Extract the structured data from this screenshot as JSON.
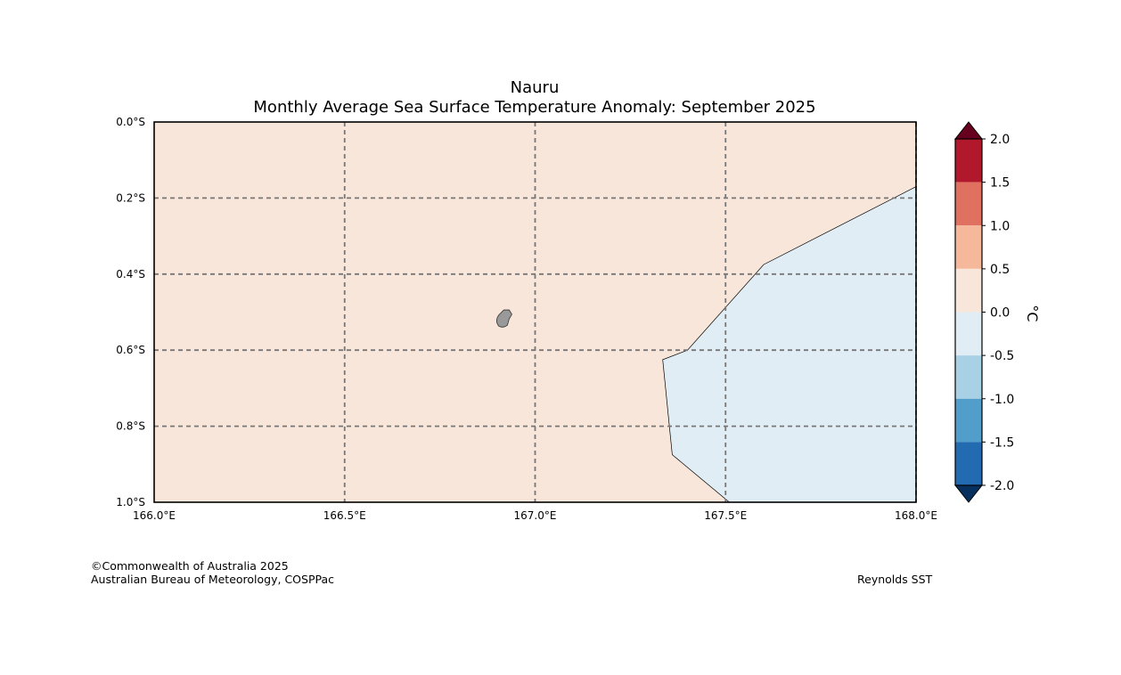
{
  "title": "Nauru",
  "subtitle": "Monthly Average Sea Surface Temperature Anomaly: September 2025",
  "map": {
    "lon_range": [
      166.0,
      168.0
    ],
    "lat_range": [
      0.0,
      1.0
    ],
    "lon_ticks": [
      "166.0°E",
      "166.5°E",
      "167.0°E",
      "167.5°E",
      "168.0°E"
    ],
    "lat_ticks": [
      "0.0°S",
      "0.2°S",
      "0.4°S",
      "0.6°S",
      "0.8°S",
      "1.0°S"
    ],
    "gridlines": true,
    "background_anomaly_color": "#f9e6da",
    "cool_region_color": "#e1edf4",
    "cool_region_outline_lonlat": [
      [
        168.0,
        0.17
      ],
      [
        167.6,
        0.375
      ],
      [
        167.4,
        0.6
      ],
      [
        167.335,
        0.625
      ],
      [
        167.36,
        0.875
      ],
      [
        167.51,
        1.0
      ],
      [
        168.0,
        1.0
      ]
    ],
    "island_name": "Nauru",
    "island_color": "#999999"
  },
  "colorbar": {
    "label": "°C",
    "ticks": [
      "2.0",
      "1.5",
      "1.0",
      "0.5",
      "0.0",
      "-0.5",
      "-1.0",
      "-1.5",
      "-2.0"
    ],
    "bins_top_to_bottom": [
      "#b2182b",
      "#e07060",
      "#f6b89b",
      "#f9e6da",
      "#e1edf4",
      "#a9d1e6",
      "#529ecb",
      "#236bb0"
    ],
    "over_color": "#67001f",
    "under_color": "#07305f"
  },
  "credits": {
    "copyright": "©Commonwealth of Australia 2025",
    "agency": "Australian Bureau of Meteorology, COSPPac",
    "dataset": "Reynolds SST"
  }
}
